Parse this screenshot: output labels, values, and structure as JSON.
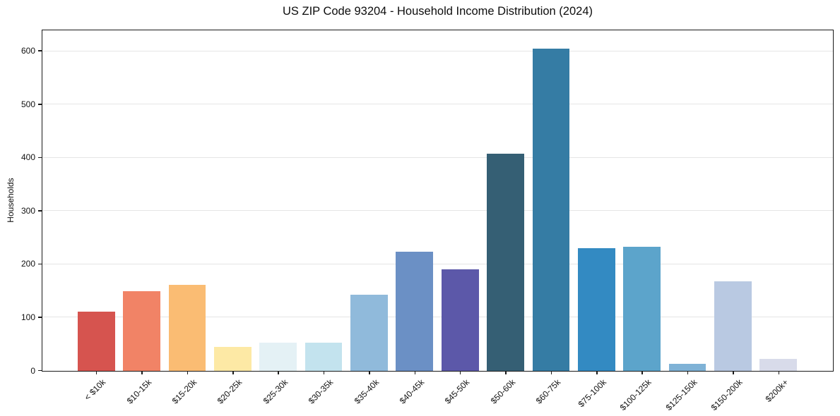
{
  "chart_data": {
    "type": "bar",
    "title": "US ZIP Code 93204 - Household Income Distribution (2024)",
    "xlabel": "",
    "ylabel": "Households",
    "categories": [
      "< $10k",
      "$10-15k",
      "$15-20k",
      "$20-25k",
      "$25-30k",
      "$30-35k",
      "$35-40k",
      "$40-45k",
      "$45-50k",
      "$50-60k",
      "$60-75k",
      "$75-100k",
      "$100-125k",
      "$125-150k",
      "$150-200k",
      "$200k+"
    ],
    "values": [
      111,
      150,
      161,
      45,
      53,
      53,
      143,
      224,
      190,
      408,
      605,
      230,
      233,
      13,
      168,
      22
    ],
    "bar_colors": [
      "#d6544f",
      "#f18366",
      "#fabc73",
      "#fde9a5",
      "#e4f1f5",
      "#c3e3ee",
      "#90badb",
      "#6b90c5",
      "#5c58a9",
      "#355f74",
      "#357ca4",
      "#338ac2",
      "#5ca4cb",
      "#7fb2d6",
      "#b9c9e2",
      "#d8dbea"
    ],
    "yticks": [
      0,
      100,
      200,
      300,
      400,
      500,
      600
    ],
    "ylim": [
      0,
      638
    ],
    "grid": "horizontal",
    "legend": "none",
    "background": "#ffffff",
    "gridline_color": "#e5e5e5",
    "axis_color": "#1a1a1a"
  }
}
